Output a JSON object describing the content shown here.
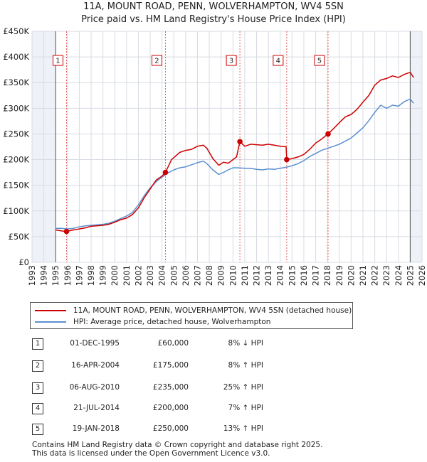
{
  "chart_data": {
    "type": "line",
    "title": "11A, MOUNT ROAD, PENN, WOLVERHAMPTON, WV4 5SN",
    "subtitle": "Price paid vs. HM Land Registry's House Price Index (HPI)",
    "xlim": [
      1993,
      2026
    ],
    "ylim": [
      0,
      450000
    ],
    "x_ticks": [
      "1993",
      "1994",
      "1995",
      "1996",
      "1997",
      "1998",
      "1999",
      "2000",
      "2001",
      "2002",
      "2003",
      "2004",
      "2005",
      "2006",
      "2007",
      "2008",
      "2009",
      "2010",
      "2011",
      "2012",
      "2013",
      "2014",
      "2015",
      "2016",
      "2017",
      "2018",
      "2019",
      "2020",
      "2021",
      "2022",
      "2023",
      "2024",
      "2025",
      "2026"
    ],
    "y_ticks": [
      {
        "value": 0,
        "label": "£0"
      },
      {
        "value": 50000,
        "label": "£50K"
      },
      {
        "value": 100000,
        "label": "£100K"
      },
      {
        "value": 150000,
        "label": "£150K"
      },
      {
        "value": 200000,
        "label": "£200K"
      },
      {
        "value": 250000,
        "label": "£250K"
      },
      {
        "value": 300000,
        "label": "£300K"
      },
      {
        "value": 350000,
        "label": "£350K"
      },
      {
        "value": 400000,
        "label": "£400K"
      },
      {
        "value": 450000,
        "label": "£450K"
      }
    ],
    "data_range_start": 1995.0,
    "data_range_end": 2025.0,
    "series": [
      {
        "name": "11A, MOUNT ROAD, PENN, WOLVERHAMPTON, WV4 5SN (detached house)",
        "color": "#cc0000",
        "x": [
          1995.0,
          1995.5,
          1995.92,
          1996.5,
          1997.0,
          1997.5,
          1998.0,
          1999.0,
          1999.5,
          2000.0,
          2000.5,
          2001.0,
          2001.5,
          2002.0,
          2002.5,
          2003.0,
          2003.5,
          2004.0,
          2004.29,
          2004.8,
          2005.5,
          2006.0,
          2006.5,
          2007.0,
          2007.5,
          2007.8,
          2008.3,
          2008.8,
          2009.2,
          2009.6,
          2010.0,
          2010.3,
          2010.59,
          2011.0,
          2011.5,
          2012.0,
          2012.5,
          2013.0,
          2013.5,
          2014.0,
          2014.5,
          2014.55,
          2015.0,
          2015.5,
          2016.0,
          2016.5,
          2017.0,
          2017.5,
          2018.05,
          2018.5,
          2019.0,
          2019.5,
          2020.0,
          2020.5,
          2021.0,
          2021.5,
          2022.0,
          2022.5,
          2023.0,
          2023.5,
          2024.0,
          2024.5,
          2025.0,
          2025.2,
          2025.3
        ],
        "values": [
          63000,
          61000,
          60000,
          63000,
          65000,
          67000,
          70000,
          72000,
          74000,
          78000,
          83000,
          86000,
          93000,
          106000,
          126000,
          143000,
          160000,
          168000,
          175000,
          200000,
          214000,
          218000,
          220000,
          226000,
          228000,
          222000,
          202000,
          189000,
          195000,
          193000,
          200000,
          205000,
          235000,
          226000,
          230000,
          229000,
          228000,
          230000,
          228000,
          226000,
          225000,
          200000,
          202000,
          205000,
          210000,
          220000,
          232000,
          240000,
          250000,
          260000,
          272000,
          283000,
          288000,
          298000,
          312000,
          325000,
          345000,
          355000,
          358000,
          363000,
          360000,
          366000,
          370000,
          363000,
          360000
        ]
      },
      {
        "name": "HPI: Average price, detached house, Wolverhampton",
        "color": "#5b8fd0",
        "x": [
          1995.0,
          1995.5,
          1996.0,
          1996.5,
          1997.0,
          1997.5,
          1998.0,
          1999.0,
          1999.5,
          2000.0,
          2000.5,
          2001.0,
          2001.5,
          2002.0,
          2002.5,
          2003.0,
          2003.5,
          2004.0,
          2004.5,
          2005.0,
          2005.5,
          2006.0,
          2006.5,
          2007.0,
          2007.5,
          2007.8,
          2008.3,
          2008.8,
          2009.2,
          2009.6,
          2010.0,
          2010.5,
          2011.0,
          2011.5,
          2012.0,
          2012.5,
          2013.0,
          2013.5,
          2014.0,
          2014.5,
          2015.0,
          2015.5,
          2016.0,
          2016.5,
          2017.0,
          2017.5,
          2018.0,
          2018.5,
          2019.0,
          2019.5,
          2020.0,
          2020.5,
          2021.0,
          2021.5,
          2022.0,
          2022.5,
          2023.0,
          2023.5,
          2024.0,
          2024.5,
          2025.0,
          2025.2,
          2025.3
        ],
        "values": [
          66000,
          66000,
          65000,
          66000,
          69000,
          71000,
          72000,
          74000,
          76000,
          80000,
          85000,
          90000,
          97000,
          112000,
          130000,
          145000,
          157000,
          166000,
          174000,
          180000,
          184000,
          186000,
          190000,
          194000,
          197000,
          192000,
          180000,
          171000,
          175000,
          180000,
          184000,
          184000,
          183000,
          183000,
          181000,
          180000,
          182000,
          181000,
          183000,
          185000,
          188000,
          192000,
          198000,
          206000,
          212000,
          218000,
          222000,
          226000,
          230000,
          236000,
          242000,
          252000,
          262000,
          276000,
          292000,
          306000,
          300000,
          306000,
          304000,
          313000,
          318000,
          312000,
          310000
        ]
      }
    ],
    "markers": [
      {
        "label": "1",
        "x": 1995.92,
        "y": 60000
      },
      {
        "label": "2",
        "x": 2004.29,
        "y": 175000
      },
      {
        "label": "3",
        "x": 2010.59,
        "y": 235000
      },
      {
        "label": "4",
        "x": 2014.55,
        "y": 200000
      },
      {
        "label": "5",
        "x": 2018.05,
        "y": 250000
      }
    ],
    "legend_position": "below"
  },
  "legend": {
    "items": [
      {
        "label": "11A, MOUNT ROAD, PENN, WOLVERHAMPTON, WV4 5SN (detached house)",
        "color": "#cc0000"
      },
      {
        "label": "HPI: Average price, detached house, Wolverhampton",
        "color": "#5b8fd0"
      }
    ]
  },
  "transactions": [
    {
      "num": "1",
      "date": "01-DEC-1995",
      "price": "£60,000",
      "hpi": "8% ↓ HPI"
    },
    {
      "num": "2",
      "date": "16-APR-2004",
      "price": "£175,000",
      "hpi": "8% ↑ HPI"
    },
    {
      "num": "3",
      "date": "06-AUG-2010",
      "price": "£235,000",
      "hpi": "25% ↑ HPI"
    },
    {
      "num": "4",
      "date": "21-JUL-2014",
      "price": "£200,000",
      "hpi": "7% ↑ HPI"
    },
    {
      "num": "5",
      "date": "19-JAN-2018",
      "price": "£250,000",
      "hpi": "13% ↑ HPI"
    }
  ],
  "footer": {
    "line1": "Contains HM Land Registry data © Crown copyright and database right 2025.",
    "line2": "This data is licensed under the Open Government Licence v3.0."
  }
}
